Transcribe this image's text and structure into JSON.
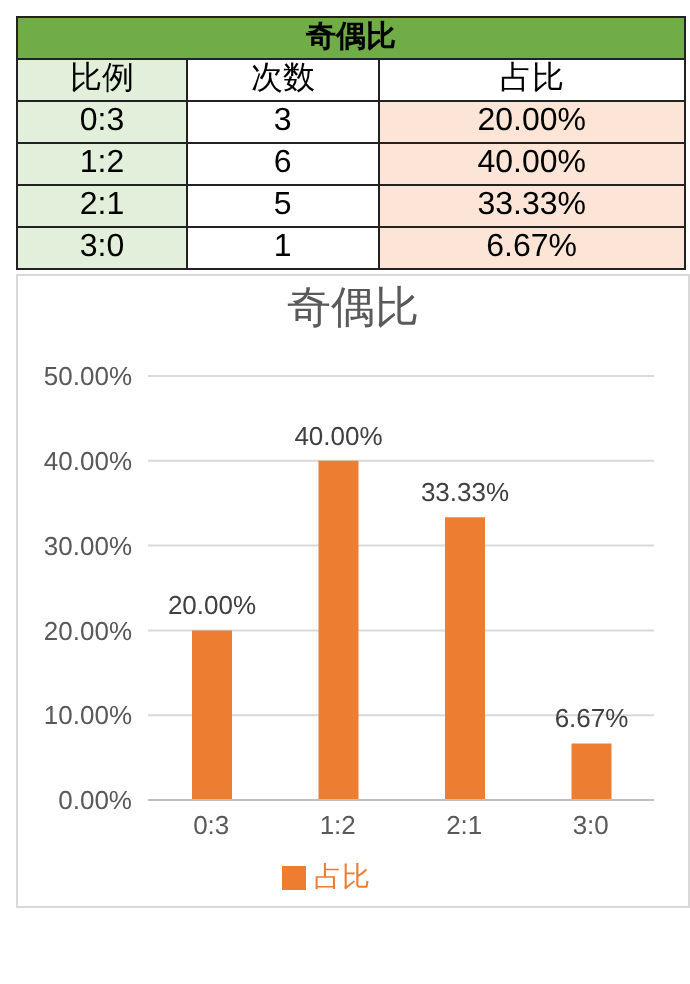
{
  "chart_data": [
    {
      "type": "other",
      "title": "奇偶比",
      "xlabel": "比例",
      "categories": [
        "0:3",
        "1:2",
        "2:1",
        "3:0"
      ],
      "series": [
        {
          "name": "次数",
          "values": [
            3,
            6,
            5,
            1
          ]
        }
      ],
      "data_labels": true
    },
    {
      "type": "bar",
      "title": "奇偶比",
      "categories": [
        "0:3",
        "1:2",
        "2:1",
        "3:0"
      ],
      "series": [
        {
          "name": "占比",
          "color": "#ed7d31",
          "values": [
            20,
            40,
            33.33,
            6.67
          ],
          "value_labels": [
            "20.00%",
            "40.00%",
            "33.33%",
            "6.67%"
          ]
        }
      ],
      "ylim": [
        0,
        50
      ],
      "yticks": [
        {
          "value": 0,
          "label": "0.00%"
        },
        {
          "value": 10,
          "label": "10.00%"
        },
        {
          "value": 20,
          "label": "20.00%"
        },
        {
          "value": 30,
          "label": "30.00%"
        },
        {
          "value": 40,
          "label": "40.00%"
        },
        {
          "value": 50,
          "label": "50.00%"
        }
      ],
      "grid": "y",
      "legend": "bottom"
    }
  ]
}
